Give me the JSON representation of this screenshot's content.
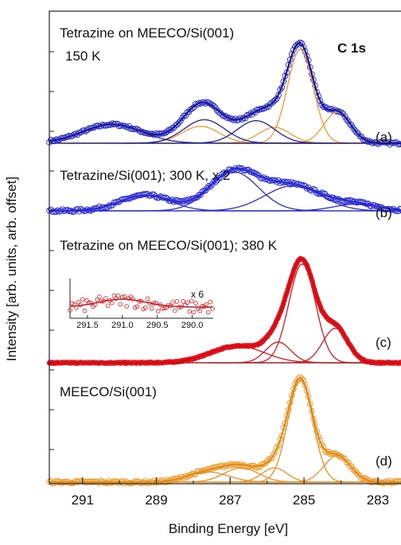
{
  "chart_data": {
    "type": "line",
    "title": "C 1s",
    "xlabel": "Binding Energy [eV]",
    "ylabel": "Intensity [arb. units, arb. offset]",
    "xlim": [
      291.9,
      282.2
    ],
    "x_reversed": true,
    "x_ticks": [
      291,
      289,
      287,
      285,
      283
    ],
    "x_tick_labels": [
      "291",
      "289",
      "287",
      "285",
      "283"
    ],
    "grid": false,
    "colors": {
      "a": "#1f1fa8",
      "b": "#2a2ad4",
      "c": "#e8141c",
      "d": "#ef9a28",
      "component_orange": "#f39a2c"
    },
    "panels": [
      {
        "id": "a",
        "label": "(a)",
        "annotations": [
          "Tetrazine on MEECO/Si(001)",
          "150 K"
        ],
        "data_color": "#2a2ad0",
        "fit_color": "#16168c",
        "components": [
          {
            "center": 285.1,
            "height": 1.0,
            "fwhm": 0.82,
            "color": "#f39a2c"
          },
          {
            "center": 284.1,
            "height": 0.33,
            "fwhm": 0.85,
            "color": "#f39a2c"
          },
          {
            "center": 287.8,
            "height": 0.18,
            "fwhm": 1.2,
            "color": "#f39a2c"
          },
          {
            "center": 285.8,
            "height": 0.17,
            "fwhm": 1.0,
            "color": "#f39a2c"
          },
          {
            "center": 290.2,
            "height": 0.2,
            "fwhm": 1.9,
            "color": "#2020a0"
          },
          {
            "center": 287.7,
            "height": 0.25,
            "fwhm": 1.3,
            "color": "#2020a0"
          },
          {
            "center": 286.3,
            "height": 0.24,
            "fwhm": 1.2,
            "color": "#2020a0"
          }
        ]
      },
      {
        "id": "b",
        "label": "(b)",
        "annotations": [
          "Tetrazine/Si(001); 300 K, x 2"
        ],
        "data_color": "#2a2ad4",
        "fit_color": "#2a2ad4",
        "components": [
          {
            "center": 289.3,
            "height": 0.28,
            "fwhm": 1.6,
            "color": "#2a2ad4"
          },
          {
            "center": 286.9,
            "height": 0.7,
            "fwhm": 1.55,
            "color": "#2a2ad4"
          },
          {
            "center": 285.3,
            "height": 0.45,
            "fwhm": 1.8,
            "color": "#2a2ad4"
          },
          {
            "center": 283.6,
            "height": 0.12,
            "fwhm": 1.4,
            "color": "#2a2ad4"
          }
        ]
      },
      {
        "id": "c",
        "label": "(c)",
        "annotations": [
          "Tetrazine on MEECO/Si(001); 380 K"
        ],
        "data_color": "#e8141c",
        "fit_color": "#c40f16",
        "components": [
          {
            "center": 285.05,
            "height": 1.0,
            "fwhm": 0.85,
            "color": "#d41a20"
          },
          {
            "center": 284.15,
            "height": 0.35,
            "fwhm": 0.8,
            "color": "#d41a20"
          },
          {
            "center": 286.8,
            "height": 0.17,
            "fwhm": 1.7,
            "color": "#d41a20"
          },
          {
            "center": 285.7,
            "height": 0.21,
            "fwhm": 0.8,
            "color": "#d41a20"
          }
        ],
        "inset": {
          "label": "x 6",
          "xlim": [
            291.75,
            289.7
          ],
          "x_ticks": [
            291.5,
            291.0,
            290.5,
            290.0
          ],
          "x_tick_labels": [
            "291.5",
            "291.0",
            "290.5",
            "290.0"
          ],
          "peak_center": 291.0,
          "peak_fwhm": 0.8
        }
      },
      {
        "id": "d",
        "label": "(d)",
        "annotations": [
          "MEECO/Si(001)"
        ],
        "data_color": "#ef9a28",
        "fit_color": "#e08a18",
        "components": [
          {
            "center": 285.1,
            "height": 1.0,
            "fwhm": 0.8,
            "color": "#ef8f20"
          },
          {
            "center": 284.1,
            "height": 0.26,
            "fwhm": 0.85,
            "color": "#ef8f20"
          },
          {
            "center": 285.8,
            "height": 0.14,
            "fwhm": 0.8,
            "color": "#ef8f20"
          },
          {
            "center": 286.7,
            "height": 0.14,
            "fwhm": 1.1,
            "color": "#ef8f20"
          },
          {
            "center": 287.6,
            "height": 0.1,
            "fwhm": 1.3,
            "color": "#ef8f20"
          }
        ]
      }
    ]
  }
}
